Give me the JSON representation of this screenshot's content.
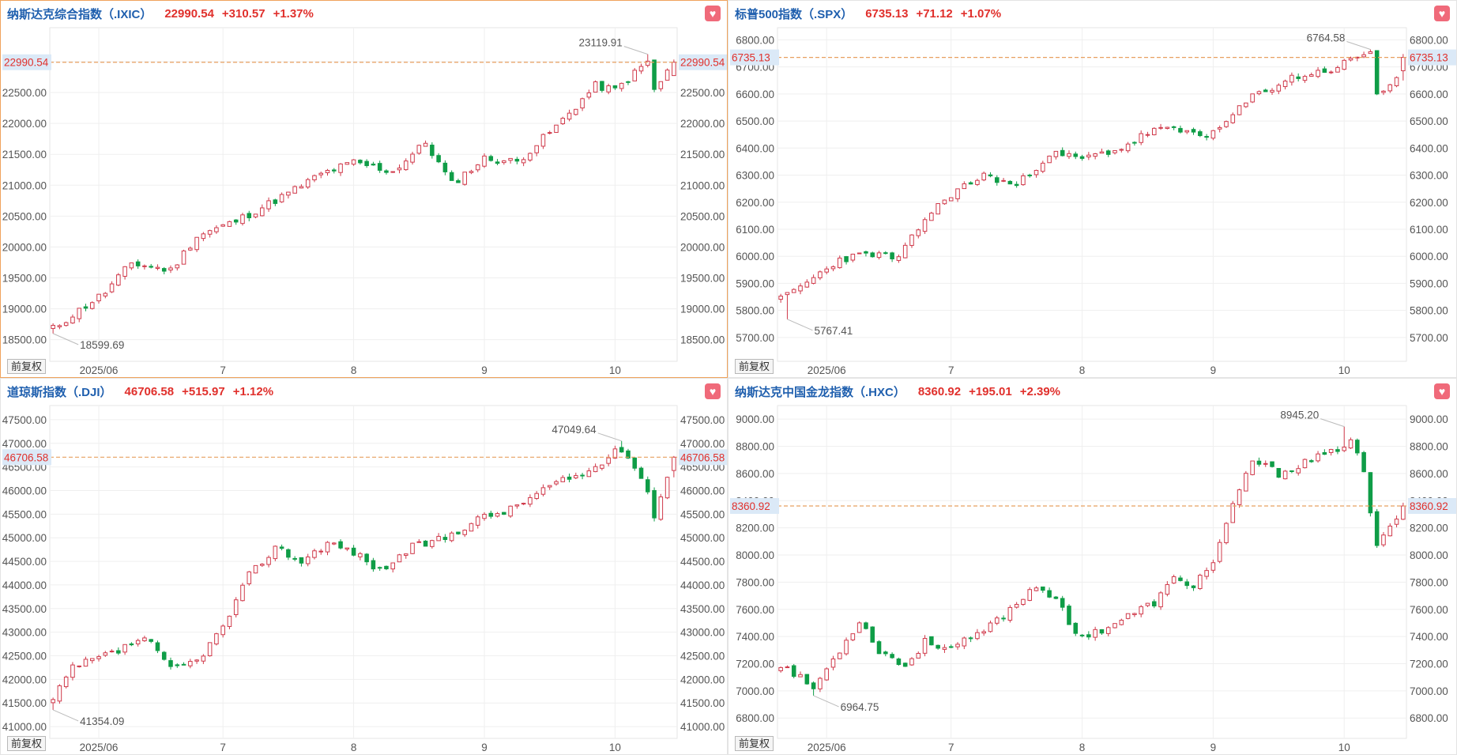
{
  "colors": {
    "up": "#d0394a",
    "down": "#0f9d47",
    "header_name": "#1f5fae",
    "header_value": "#e0302c",
    "price_line": "#e8a060",
    "tag_bg": "#dbe9f7",
    "fav": "#f06a7a",
    "active_border": "#f0a35c"
  },
  "favorite_icon": "heart-icon",
  "adjust_label": "前复权",
  "panels": [
    {
      "name": "纳斯达克综合指数（.IXIC）",
      "price": "22990.54",
      "change": "+310.57",
      "pct": "+1.37%",
      "price_tag": "22990.54",
      "high_label": "23119.91",
      "low_label": "18599.69",
      "active": true,
      "chart_data": {
        "type": "candlestick",
        "title": "纳斯达克综合指数（.IXIC）",
        "x_ticks": [
          "2025/06",
          "7",
          "8",
          "9",
          "10"
        ],
        "x_tick_index": [
          7,
          26,
          46,
          66,
          86
        ],
        "y_ticks": [
          "18500.00",
          "19000.00",
          "19500.00",
          "20000.00",
          "20500.00",
          "21000.00",
          "21500.00",
          "22000.00",
          "22500.00",
          "23000.00"
        ],
        "y_range": [
          18150,
          23550
        ],
        "last_price": 22990.54,
        "high": 23119.91,
        "high_index": 91,
        "low": 18599.69,
        "low_index": 0,
        "n": 96,
        "start": 18680,
        "end": 22990.54,
        "anchors": [
          [
            0,
            18680
          ],
          [
            8,
            19270
          ],
          [
            12,
            19740
          ],
          [
            18,
            19620
          ],
          [
            22,
            20180
          ],
          [
            28,
            20420
          ],
          [
            36,
            20870
          ],
          [
            41,
            21180
          ],
          [
            46,
            21370
          ],
          [
            52,
            21220
          ],
          [
            57,
            21690
          ],
          [
            61,
            21020
          ],
          [
            66,
            21430
          ],
          [
            71,
            21380
          ],
          [
            77,
            21950
          ],
          [
            83,
            22610
          ],
          [
            86,
            22540
          ],
          [
            91,
            23000
          ],
          [
            92,
            22530
          ],
          [
            95,
            22990.54
          ]
        ],
        "seed": 11
      }
    },
    {
      "name": "标普500指数（.SPX）",
      "price": "6735.13",
      "change": "+71.12",
      "pct": "+1.07%",
      "price_tag": "6735.13",
      "high_label": "6764.58",
      "low_label": "5767.41",
      "active": false,
      "chart_data": {
        "type": "candlestick",
        "title": "标普500指数（.SPX）",
        "x_ticks": [
          "2025/06",
          "7",
          "8",
          "9",
          "10"
        ],
        "x_tick_index": [
          7,
          26,
          46,
          66,
          86
        ],
        "y_ticks": [
          "5700.00",
          "5800.00",
          "5900.00",
          "6000.00",
          "6100.00",
          "6200.00",
          "6300.00",
          "6400.00",
          "6500.00",
          "6600.00",
          "6700.00",
          "6800.00"
        ],
        "y_range": [
          5612,
          6845
        ],
        "last_price": 6735.13,
        "high": 6764.58,
        "high_index": 90,
        "low": 5767.41,
        "low_index": 1,
        "n": 96,
        "start": 5840,
        "end": 6735.13,
        "anchors": [
          [
            0,
            5840
          ],
          [
            5,
            5920
          ],
          [
            9,
            5990
          ],
          [
            14,
            6010
          ],
          [
            18,
            5990
          ],
          [
            22,
            6140
          ],
          [
            26,
            6230
          ],
          [
            31,
            6300
          ],
          [
            36,
            6260
          ],
          [
            41,
            6380
          ],
          [
            46,
            6360
          ],
          [
            52,
            6400
          ],
          [
            57,
            6470
          ],
          [
            62,
            6460
          ],
          [
            66,
            6450
          ],
          [
            72,
            6590
          ],
          [
            78,
            6660
          ],
          [
            84,
            6690
          ],
          [
            90,
            6760
          ],
          [
            91,
            6600
          ],
          [
            94,
            6650
          ],
          [
            95,
            6735.13
          ]
        ],
        "seed": 23
      }
    },
    {
      "name": "道琼斯指数（.DJI）",
      "price": "46706.58",
      "change": "+515.97",
      "pct": "+1.12%",
      "price_tag": "46706.58",
      "high_label": "47049.64",
      "low_label": "41354.09",
      "active": false,
      "chart_data": {
        "type": "candlestick",
        "title": "道琼斯指数（.DJI）",
        "x_ticks": [
          "2025/06",
          "7",
          "8",
          "9",
          "10"
        ],
        "x_tick_index": [
          7,
          26,
          46,
          66,
          86
        ],
        "y_ticks": [
          "41000.00",
          "41500.00",
          "42000.00",
          "42500.00",
          "43000.00",
          "43500.00",
          "44000.00",
          "44500.00",
          "45000.00",
          "45500.00",
          "46000.00",
          "46500.00",
          "47000.00",
          "47500.00"
        ],
        "y_range": [
          40750,
          47800
        ],
        "last_price": 46706.58,
        "high": 47049.64,
        "high_index": 87,
        "low": 41354.09,
        "low_index": 0,
        "n": 96,
        "start": 41550,
        "end": 46706.58,
        "anchors": [
          [
            0,
            41550
          ],
          [
            3,
            42250
          ],
          [
            10,
            42600
          ],
          [
            14,
            42900
          ],
          [
            18,
            42200
          ],
          [
            22,
            42400
          ],
          [
            26,
            43100
          ],
          [
            30,
            44200
          ],
          [
            34,
            44800
          ],
          [
            38,
            44500
          ],
          [
            42,
            44900
          ],
          [
            46,
            44700
          ],
          [
            50,
            44300
          ],
          [
            55,
            44800
          ],
          [
            60,
            45000
          ],
          [
            65,
            45400
          ],
          [
            70,
            45600
          ],
          [
            76,
            46100
          ],
          [
            82,
            46400
          ],
          [
            87,
            46900
          ],
          [
            90,
            46300
          ],
          [
            92,
            45500
          ],
          [
            95,
            46706.58
          ]
        ],
        "seed": 37
      }
    },
    {
      "name": "纳斯达克中国金龙指数（.HXC）",
      "price": "8360.92",
      "change": "+195.01",
      "pct": "+2.39%",
      "price_tag": "8360.92",
      "high_label": "8945.20",
      "low_label": "6964.75",
      "active": false,
      "chart_data": {
        "type": "candlestick",
        "title": "纳斯达克中国金龙指数（.HXC）",
        "x_ticks": [
          "2025/06",
          "7",
          "8",
          "9",
          "10"
        ],
        "x_tick_index": [
          7,
          26,
          46,
          66,
          86
        ],
        "y_ticks": [
          "6800.00",
          "7000.00",
          "7200.00",
          "7400.00",
          "7600.00",
          "7800.00",
          "8000.00",
          "8200.00",
          "8400.00",
          "8600.00",
          "8800.00",
          "9000.00"
        ],
        "y_range": [
          6650,
          9100
        ],
        "last_price": 8360.92,
        "high": 8945.2,
        "high_index": 86,
        "low": 6964.75,
        "low_index": 5,
        "n": 96,
        "start": 7200,
        "end": 8360.92,
        "anchors": [
          [
            0,
            7200
          ],
          [
            5,
            7020
          ],
          [
            9,
            7300
          ],
          [
            12,
            7520
          ],
          [
            15,
            7300
          ],
          [
            19,
            7180
          ],
          [
            22,
            7360
          ],
          [
            26,
            7320
          ],
          [
            30,
            7400
          ],
          [
            35,
            7600
          ],
          [
            39,
            7780
          ],
          [
            42,
            7680
          ],
          [
            45,
            7400
          ],
          [
            49,
            7450
          ],
          [
            53,
            7550
          ],
          [
            57,
            7650
          ],
          [
            60,
            7820
          ],
          [
            63,
            7780
          ],
          [
            66,
            7950
          ],
          [
            69,
            8350
          ],
          [
            72,
            8700
          ],
          [
            76,
            8600
          ],
          [
            80,
            8680
          ],
          [
            84,
            8750
          ],
          [
            87,
            8850
          ],
          [
            89,
            8600
          ],
          [
            91,
            8050
          ],
          [
            93,
            8200
          ],
          [
            95,
            8360.92
          ]
        ],
        "seed": 53
      }
    }
  ]
}
